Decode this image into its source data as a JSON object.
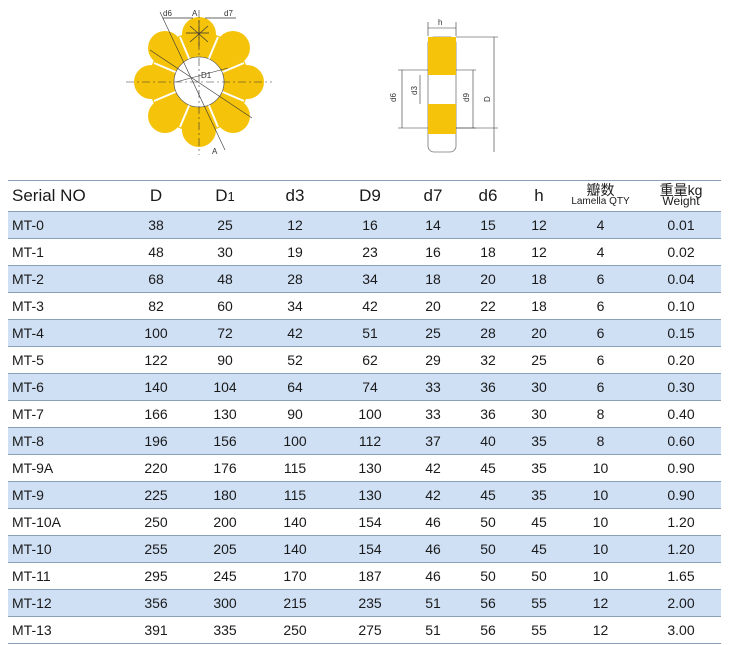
{
  "diagram_front": {
    "labels": [
      "d6",
      "d7",
      "D1",
      "A",
      "A"
    ]
  },
  "diagram_side": {
    "labels": [
      "h",
      "d6",
      "d3",
      "d9",
      "D"
    ]
  },
  "table": {
    "headers": {
      "serial": "Serial NO",
      "D": "D",
      "D1_main": "D",
      "D1_sub": "1",
      "d3": "d3",
      "D9": "D9",
      "d7": "d7",
      "d6": "d6",
      "h": "h",
      "lamella_cn": "瓣数",
      "lamella_en": "Lamella QTY",
      "weight_cn": "重量kg",
      "weight_en": "Weight"
    },
    "rows": [
      [
        "MT-0",
        "38",
        "25",
        "12",
        "16",
        "14",
        "15",
        "12",
        "4",
        "0.01"
      ],
      [
        "MT-1",
        "48",
        "30",
        "19",
        "23",
        "16",
        "18",
        "12",
        "4",
        "0.02"
      ],
      [
        "MT-2",
        "68",
        "48",
        "28",
        "34",
        "18",
        "20",
        "18",
        "6",
        "0.04"
      ],
      [
        "MT-3",
        "82",
        "60",
        "34",
        "42",
        "20",
        "22",
        "18",
        "6",
        "0.10"
      ],
      [
        "MT-4",
        "100",
        "72",
        "42",
        "51",
        "25",
        "28",
        "20",
        "6",
        "0.15"
      ],
      [
        "MT-5",
        "122",
        "90",
        "52",
        "62",
        "29",
        "32",
        "25",
        "6",
        "0.20"
      ],
      [
        "MT-6",
        "140",
        "104",
        "64",
        "74",
        "33",
        "36",
        "30",
        "6",
        "0.30"
      ],
      [
        "MT-7",
        "166",
        "130",
        "90",
        "100",
        "33",
        "36",
        "30",
        "8",
        "0.40"
      ],
      [
        "MT-8",
        "196",
        "156",
        "100",
        "112",
        "37",
        "40",
        "35",
        "8",
        "0.60"
      ],
      [
        "MT-9A",
        "220",
        "176",
        "115",
        "130",
        "42",
        "45",
        "35",
        "10",
        "0.90"
      ],
      [
        "MT-9",
        "225",
        "180",
        "115",
        "130",
        "42",
        "45",
        "35",
        "10",
        "0.90"
      ],
      [
        "MT-10A",
        "250",
        "200",
        "140",
        "154",
        "46",
        "50",
        "45",
        "10",
        "1.20"
      ],
      [
        "MT-10",
        "255",
        "205",
        "140",
        "154",
        "46",
        "50",
        "45",
        "10",
        "1.20"
      ],
      [
        "MT-11",
        "295",
        "245",
        "170",
        "187",
        "46",
        "50",
        "50",
        "10",
        "1.65"
      ],
      [
        "MT-12",
        "356",
        "300",
        "215",
        "235",
        "51",
        "56",
        "55",
        "12",
        "2.00"
      ],
      [
        "MT-13",
        "391",
        "335",
        "250",
        "275",
        "51",
        "56",
        "55",
        "12",
        "3.00"
      ]
    ]
  }
}
